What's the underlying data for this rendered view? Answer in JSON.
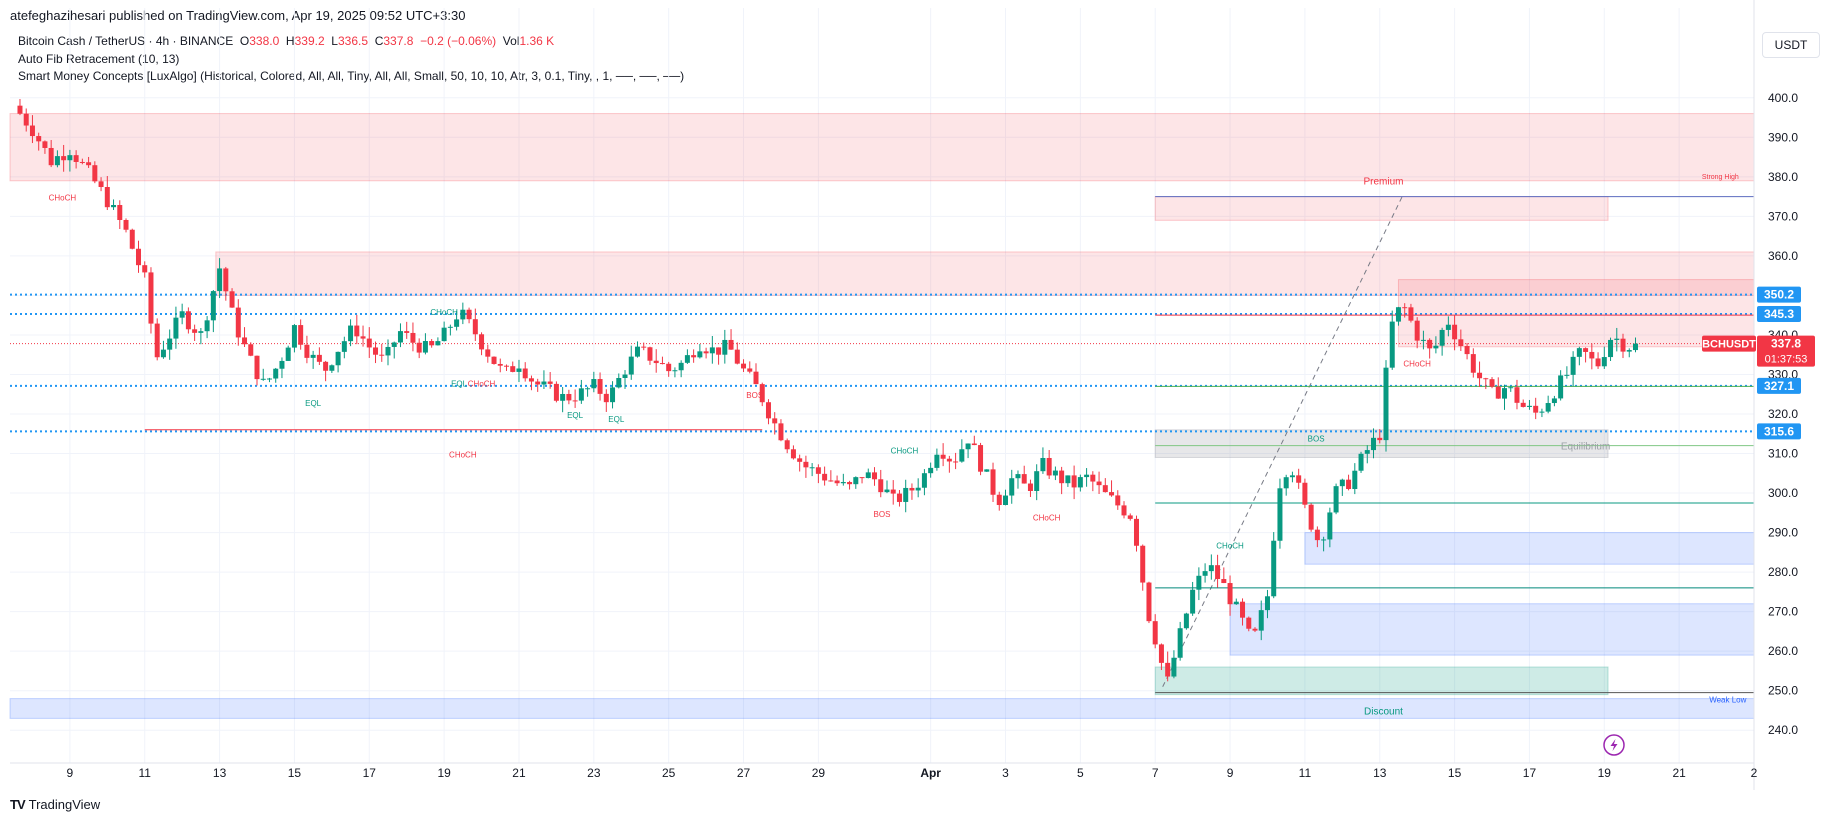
{
  "publish_line": "atefeghazihesari published on TradingView.com, Apr 19, 2025 09:52 UTC+3:30",
  "legend": {
    "symbol": "Bitcoin Cash / TetherUS · 4h · BINANCE",
    "o_label": "O",
    "o_value": "338.0",
    "h_label": "H",
    "h_value": "339.2",
    "l_label": "L",
    "l_value": "336.5",
    "c_label": "C",
    "c_value": "337.8",
    "change": "−0.2 (−0.06%)",
    "vol_label": "Vol",
    "vol_value": "1.36 K",
    "indicator_1": "Auto Fib Retracement (10, 13)",
    "indicator_2": "Smart Money Concepts [LuxAlgo] (Historical, Colored, All, All, Tiny, All, All, Small, 50, 10, 10, Atr, 3, 0.1, Tiny, , 1, ──, ──, ──)"
  },
  "currency": "USDT",
  "footer_brand": "TradingView",
  "colors": {
    "up": "#089981",
    "down": "#f23645",
    "supply_zone": "#f23645",
    "demand_zone": "#2962ff",
    "hline": "#2196f3",
    "price_tag": "#f23645"
  },
  "chart_data": {
    "type": "candlestick",
    "symbol": "BCHUSDT",
    "timeframe": "4h",
    "y_range": [
      235,
      405
    ],
    "y_ticks": [
      240,
      250,
      260,
      270,
      280,
      290,
      300,
      310,
      320,
      330,
      340,
      350,
      360,
      370,
      380,
      390,
      400
    ],
    "x_ticks": [
      "9",
      "11",
      "13",
      "15",
      "17",
      "19",
      "21",
      "23",
      "25",
      "27",
      "29",
      "Apr",
      "3",
      "5",
      "7",
      "9",
      "11",
      "13",
      "15",
      "17",
      "19",
      "21",
      "2"
    ],
    "x_tick_days": [
      9,
      11,
      13,
      15,
      17,
      19,
      21,
      23,
      25,
      27,
      29,
      32,
      34,
      36,
      38,
      40,
      42,
      44,
      46,
      48,
      50,
      52,
      54
    ],
    "day_range": [
      7.4,
      54
    ],
    "price_path": [
      [
        7.5,
        398
      ],
      [
        8,
        392
      ],
      [
        8.5,
        384
      ],
      [
        9,
        387
      ],
      [
        9.5,
        381
      ],
      [
        10,
        374
      ],
      [
        10.5,
        366
      ],
      [
        11,
        354
      ],
      [
        11.3,
        334
      ],
      [
        11.6,
        339
      ],
      [
        12,
        345
      ],
      [
        12.5,
        340
      ],
      [
        13,
        357
      ],
      [
        13.4,
        343
      ],
      [
        13.8,
        334
      ],
      [
        14.2,
        327
      ],
      [
        14.6,
        333
      ],
      [
        15,
        342
      ],
      [
        15.4,
        335
      ],
      [
        15.8,
        331
      ],
      [
        16.2,
        337
      ],
      [
        16.6,
        342
      ],
      [
        17,
        337
      ],
      [
        17.4,
        333
      ],
      [
        17.8,
        341
      ],
      [
        18.2,
        338
      ],
      [
        18.6,
        336
      ],
      [
        19,
        340
      ],
      [
        19.4,
        346
      ],
      [
        19.8,
        341
      ],
      [
        20.2,
        335
      ],
      [
        20.6,
        330
      ],
      [
        21,
        333
      ],
      [
        21.4,
        328
      ],
      [
        21.8,
        326
      ],
      [
        22.2,
        324
      ],
      [
        22.6,
        325
      ],
      [
        23,
        327
      ],
      [
        23.4,
        324
      ],
      [
        23.8,
        331
      ],
      [
        24.2,
        336
      ],
      [
        24.6,
        334
      ],
      [
        25,
        331
      ],
      [
        25.4,
        333
      ],
      [
        25.8,
        338
      ],
      [
        26.2,
        336
      ],
      [
        26.6,
        337
      ],
      [
        27,
        331
      ],
      [
        27.4,
        326
      ],
      [
        27.8,
        318
      ],
      [
        28.2,
        312
      ],
      [
        28.6,
        307
      ],
      [
        29,
        305
      ],
      [
        29.4,
        303
      ],
      [
        29.8,
        301
      ],
      [
        30.2,
        305
      ],
      [
        30.6,
        303
      ],
      [
        31,
        298
      ],
      [
        31.4,
        300
      ],
      [
        31.8,
        304
      ],
      [
        32.2,
        312
      ],
      [
        32.6,
        308
      ],
      [
        33,
        314
      ],
      [
        33.4,
        306
      ],
      [
        33.8,
        298
      ],
      [
        34.2,
        304
      ],
      [
        34.6,
        301
      ],
      [
        35,
        307
      ],
      [
        35.4,
        304
      ],
      [
        35.8,
        302
      ],
      [
        36.2,
        304
      ],
      [
        36.6,
        300
      ],
      [
        37,
        297
      ],
      [
        37.4,
        294
      ],
      [
        37.8,
        270
      ],
      [
        38.1,
        260
      ],
      [
        38.3,
        251
      ],
      [
        38.6,
        262
      ],
      [
        39,
        275
      ],
      [
        39.4,
        282
      ],
      [
        39.8,
        277
      ],
      [
        40.2,
        270
      ],
      [
        40.6,
        262
      ],
      [
        41,
        274
      ],
      [
        41.3,
        302
      ],
      [
        41.6,
        308
      ],
      [
        42,
        296
      ],
      [
        42.4,
        287
      ],
      [
        42.8,
        300
      ],
      [
        43.2,
        303
      ],
      [
        43.6,
        310
      ],
      [
        44,
        315
      ],
      [
        44.3,
        342
      ],
      [
        44.6,
        348
      ],
      [
        45,
        340
      ],
      [
        45.4,
        335
      ],
      [
        45.8,
        344
      ],
      [
        46.2,
        337
      ],
      [
        46.6,
        330
      ],
      [
        47,
        325
      ],
      [
        47.4,
        327
      ],
      [
        47.8,
        322
      ],
      [
        48.2,
        320
      ],
      [
        48.6,
        325
      ],
      [
        49,
        330
      ],
      [
        49.4,
        336
      ],
      [
        49.8,
        332
      ],
      [
        50.2,
        340
      ],
      [
        50.6,
        337
      ],
      [
        50.9,
        337.8
      ]
    ],
    "hlines": [
      {
        "label": "350.2",
        "value": 350.2
      },
      {
        "label": "345.3",
        "value": 345.3
      },
      {
        "label": "327.1",
        "value": 327.1
      },
      {
        "label": "315.6",
        "value": 315.6
      }
    ],
    "last_price": {
      "label": "BCHUSDT",
      "value": "337.8",
      "countdown": "01:37:53"
    },
    "zones": [
      {
        "kind": "supply",
        "x0": 7.4,
        "x1": 54,
        "y0": 379,
        "y1": 396
      },
      {
        "kind": "supply",
        "x0": 12.9,
        "x1": 54,
        "y0": 350,
        "y1": 361
      },
      {
        "kind": "supply",
        "x0": 38,
        "x1": 50.1,
        "y0": 369,
        "y1": 375
      },
      {
        "kind": "supply",
        "x0": 44.5,
        "x1": 54,
        "y0": 337,
        "y1": 354
      },
      {
        "kind": "demand",
        "x0": 42,
        "x1": 54,
        "y0": 282,
        "y1": 290
      },
      {
        "kind": "demand",
        "x0": 40,
        "x1": 54,
        "y0": 259,
        "y1": 272
      },
      {
        "kind": "demand",
        "x0": 7.4,
        "x1": 54,
        "y0": 243,
        "y1": 248
      },
      {
        "kind": "discount",
        "x0": 38,
        "x1": 50.1,
        "y0": 249,
        "y1": 256
      },
      {
        "kind": "equilibrium",
        "x0": 38,
        "x1": 50.1,
        "y0": 309,
        "y1": 316
      }
    ],
    "annotations": [
      {
        "text": "CHoCH",
        "day": 8.8,
        "price": 374,
        "color": "#f23645"
      },
      {
        "text": "CHoCH",
        "day": 19.5,
        "price": 309,
        "color": "#f23645"
      },
      {
        "text": "CHoCH",
        "day": 19,
        "price": 345,
        "color": "#089981"
      },
      {
        "text": "CHoCH",
        "day": 20,
        "price": 327,
        "color": "#f23645"
      },
      {
        "text": "EQL",
        "day": 15.5,
        "price": 322,
        "color": "#089981"
      },
      {
        "text": "EQL",
        "day": 19.4,
        "price": 327,
        "color": "#089981"
      },
      {
        "text": "EQL",
        "day": 22.5,
        "price": 319,
        "color": "#089981"
      },
      {
        "text": "EQL",
        "day": 23.6,
        "price": 318,
        "color": "#089981"
      },
      {
        "text": "BOS",
        "day": 27.3,
        "price": 324,
        "color": "#f23645"
      },
      {
        "text": "CHoCH",
        "day": 31.3,
        "price": 310,
        "color": "#089981"
      },
      {
        "text": "BOS",
        "day": 30.7,
        "price": 294,
        "color": "#f23645"
      },
      {
        "text": "CHoCH",
        "day": 35.1,
        "price": 293,
        "color": "#f23645"
      },
      {
        "text": "CHoCH",
        "day": 40,
        "price": 286,
        "color": "#089981"
      },
      {
        "text": "BOS",
        "day": 42.3,
        "price": 313,
        "color": "#089981"
      },
      {
        "text": "CHoCH",
        "day": 45,
        "price": 332,
        "color": "#f23645"
      },
      {
        "text": "Premium",
        "day": 44.1,
        "price": 378,
        "color": "#f23645"
      },
      {
        "text": "Equilibrium",
        "day": 49.5,
        "price": 311,
        "color": "#9aa0a6"
      },
      {
        "text": "Discount",
        "day": 44.1,
        "price": 244,
        "color": "#089981"
      },
      {
        "text": "Strong High",
        "day": 53.1,
        "price": 379.5,
        "color": "#f23645"
      },
      {
        "text": "Weak Low",
        "day": 53.3,
        "price": 247,
        "color": "#2962ff"
      }
    ]
  }
}
